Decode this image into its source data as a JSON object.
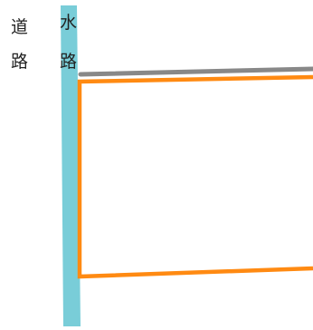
{
  "labels": {
    "road": [
      "道",
      "路"
    ],
    "waterway": [
      "水",
      "路"
    ]
  },
  "colors": {
    "waterway": "#79cdd8",
    "road_line": "#888888",
    "parcel_outline": "#ff8a12",
    "background": "#ffffff",
    "text": "#222222"
  }
}
